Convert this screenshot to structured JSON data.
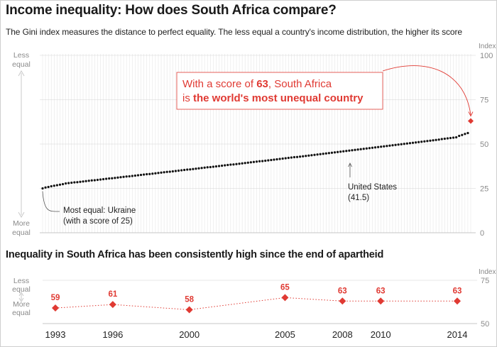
{
  "title": "Income inequality: How does South Africa compare?",
  "subtitle": "The Gini index measures the distance to perfect equality. The less equal a country's income distribution, the higher its score",
  "chart2_title": "Inequality in South Africa has been consistently high since the end of apartheid",
  "colors": {
    "accent": "#e03a33",
    "dots": "#111111",
    "grid": "#e1e1e1",
    "axis_text": "#8a8a8a"
  },
  "chart_data": [
    {
      "type": "scatter",
      "ylabel": "Index",
      "ylim": [
        0,
        100
      ],
      "yticks": [
        0,
        25,
        50,
        75,
        100
      ],
      "y_top_label": "Less\nequal",
      "y_bottom_label": "More\nequal",
      "country_count": 149,
      "min_value": 25,
      "max_value": 63,
      "annotations": {
        "highlight_prefix": "With a score of ",
        "highlight_value": "63",
        "highlight_country": ", South Africa",
        "highlight_line2_prefix": "is ",
        "highlight_line2_bold": "the world's most unequal country",
        "us_name": "United States",
        "us_value": "(41.5)",
        "ukraine_name": "Most equal: Ukraine",
        "ukraine_value": "(with a score of 25)"
      }
    },
    {
      "type": "line",
      "ylabel": "Index",
      "ylim": [
        50,
        75
      ],
      "yticks": [
        50,
        75
      ],
      "y_top_label": "Less\nequal",
      "y_bottom_label": "More\nequal",
      "x": [
        1993,
        1996,
        2000,
        2005,
        2008,
        2010,
        2014
      ],
      "values": [
        59,
        61,
        58,
        65,
        63,
        63,
        63
      ]
    }
  ]
}
